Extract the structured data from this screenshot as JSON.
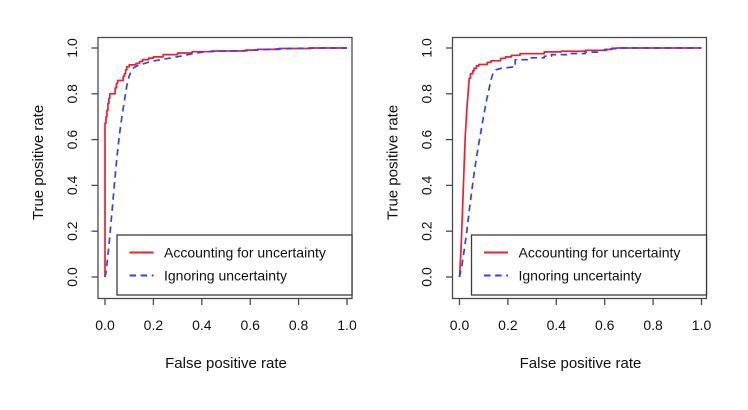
{
  "figure": {
    "background": "#ffffff",
    "axis_color": "#4a4a4a",
    "text_color": "#111111"
  },
  "chart_data": [
    {
      "type": "line",
      "subtype": "roc-step-curves",
      "title": "",
      "xlabel": "False positive rate",
      "ylabel": "True positive rate",
      "xlim": [
        0,
        1
      ],
      "ylim": [
        0,
        1
      ],
      "x_ticks": [
        "0.0",
        "0.2",
        "0.4",
        "0.6",
        "0.8",
        "1.0"
      ],
      "y_ticks": [
        "0.0",
        "0.2",
        "0.4",
        "0.6",
        "0.8",
        "1.0"
      ],
      "grid": "off",
      "legend_position": "bottomright",
      "series": [
        {
          "name": "Accounting for uncertainty",
          "color": "#f11e32",
          "dash": "solid",
          "points": [
            [
              0,
              0
            ],
            [
              0,
              0.672
            ],
            [
              0.004,
              0.672
            ],
            [
              0.004,
              0.7
            ],
            [
              0.008,
              0.7
            ],
            [
              0.008,
              0.727
            ],
            [
              0.012,
              0.727
            ],
            [
              0.012,
              0.758
            ],
            [
              0.016,
              0.758
            ],
            [
              0.016,
              0.78
            ],
            [
              0.02,
              0.78
            ],
            [
              0.02,
              0.8
            ],
            [
              0.042,
              0.8
            ],
            [
              0.042,
              0.826
            ],
            [
              0.047,
              0.826
            ],
            [
              0.047,
              0.846
            ],
            [
              0.052,
              0.846
            ],
            [
              0.052,
              0.858
            ],
            [
              0.075,
              0.858
            ],
            [
              0.075,
              0.876
            ],
            [
              0.08,
              0.876
            ],
            [
              0.08,
              0.888
            ],
            [
              0.085,
              0.888
            ],
            [
              0.085,
              0.905
            ],
            [
              0.09,
              0.905
            ],
            [
              0.09,
              0.918
            ],
            [
              0.1,
              0.918
            ],
            [
              0.1,
              0.926
            ],
            [
              0.128,
              0.926
            ],
            [
              0.128,
              0.933
            ],
            [
              0.143,
              0.933
            ],
            [
              0.143,
              0.941
            ],
            [
              0.155,
              0.941
            ],
            [
              0.155,
              0.949
            ],
            [
              0.18,
              0.949
            ],
            [
              0.18,
              0.956
            ],
            [
              0.2,
              0.956
            ],
            [
              0.2,
              0.961
            ],
            [
              0.24,
              0.961
            ],
            [
              0.24,
              0.971
            ],
            [
              0.3,
              0.971
            ],
            [
              0.3,
              0.978
            ],
            [
              0.36,
              0.978
            ],
            [
              0.36,
              0.984
            ],
            [
              0.44,
              0.984
            ],
            [
              0.44,
              0.987
            ],
            [
              0.58,
              0.987
            ],
            [
              0.58,
              0.991
            ],
            [
              0.63,
              0.991
            ],
            [
              0.63,
              0.994
            ],
            [
              0.72,
              0.994
            ],
            [
              0.72,
              0.998
            ],
            [
              0.85,
              0.998
            ],
            [
              0.85,
              1
            ],
            [
              1,
              1
            ]
          ]
        },
        {
          "name": "Ignoring uncertainty",
          "color": "#3542e6",
          "dash": "dashed",
          "points": [
            [
              0,
              0
            ],
            [
              0.004,
              0.02
            ],
            [
              0.01,
              0.075
            ],
            [
              0.015,
              0.125
            ],
            [
              0.02,
              0.18
            ],
            [
              0.03,
              0.3
            ],
            [
              0.04,
              0.42
            ],
            [
              0.05,
              0.53
            ],
            [
              0.06,
              0.625
            ],
            [
              0.07,
              0.7
            ],
            [
              0.08,
              0.77
            ],
            [
              0.09,
              0.835
            ],
            [
              0.1,
              0.878
            ],
            [
              0.11,
              0.902
            ],
            [
              0.12,
              0.915
            ],
            [
              0.135,
              0.923
            ],
            [
              0.155,
              0.93
            ],
            [
              0.18,
              0.938
            ],
            [
              0.21,
              0.945
            ],
            [
              0.25,
              0.953
            ],
            [
              0.29,
              0.96
            ],
            [
              0.33,
              0.968
            ],
            [
              0.37,
              0.977
            ],
            [
              0.41,
              0.983
            ],
            [
              0.47,
              0.986
            ],
            [
              0.58,
              0.988
            ],
            [
              0.63,
              0.992
            ],
            [
              0.72,
              0.996
            ],
            [
              0.82,
              0.999
            ],
            [
              0.87,
              1
            ],
            [
              1,
              1
            ]
          ]
        }
      ]
    },
    {
      "type": "line",
      "subtype": "roc-step-curves",
      "title": "",
      "xlabel": "False positive rate",
      "ylabel": "True positive rate",
      "xlim": [
        0,
        1
      ],
      "ylim": [
        0,
        1
      ],
      "x_ticks": [
        "0.0",
        "0.2",
        "0.4",
        "0.6",
        "0.8",
        "1.0"
      ],
      "y_ticks": [
        "0.0",
        "0.2",
        "0.4",
        "0.6",
        "0.8",
        "1.0"
      ],
      "grid": "off",
      "legend_position": "bottomright",
      "series": [
        {
          "name": "Accounting for uncertainty",
          "color": "#f11e32",
          "dash": "solid",
          "points": [
            [
              0,
              0
            ],
            [
              0.006,
              0.12
            ],
            [
              0.012,
              0.28
            ],
            [
              0.018,
              0.46
            ],
            [
              0.024,
              0.62
            ],
            [
              0.03,
              0.73
            ],
            [
              0.036,
              0.81
            ],
            [
              0.04,
              0.868
            ],
            [
              0.045,
              0.868
            ],
            [
              0.045,
              0.888
            ],
            [
              0.055,
              0.888
            ],
            [
              0.055,
              0.9
            ],
            [
              0.06,
              0.9
            ],
            [
              0.06,
              0.912
            ],
            [
              0.07,
              0.912
            ],
            [
              0.07,
              0.922
            ],
            [
              0.08,
              0.922
            ],
            [
              0.08,
              0.928
            ],
            [
              0.115,
              0.928
            ],
            [
              0.115,
              0.937
            ],
            [
              0.13,
              0.937
            ],
            [
              0.13,
              0.944
            ],
            [
              0.17,
              0.944
            ],
            [
              0.17,
              0.955
            ],
            [
              0.19,
              0.955
            ],
            [
              0.19,
              0.961
            ],
            [
              0.215,
              0.961
            ],
            [
              0.215,
              0.968
            ],
            [
              0.25,
              0.968
            ],
            [
              0.25,
              0.975
            ],
            [
              0.35,
              0.975
            ],
            [
              0.35,
              0.983
            ],
            [
              0.42,
              0.983
            ],
            [
              0.42,
              0.986
            ],
            [
              0.52,
              0.986
            ],
            [
              0.52,
              0.99
            ],
            [
              0.6,
              0.99
            ],
            [
              0.6,
              0.994
            ],
            [
              0.63,
              0.994
            ],
            [
              0.63,
              0.999
            ],
            [
              0.65,
              0.999
            ],
            [
              0.65,
              1
            ],
            [
              1,
              1
            ]
          ]
        },
        {
          "name": "Ignoring uncertainty",
          "color": "#3542e6",
          "dash": "dashed",
          "points": [
            [
              0,
              0
            ],
            [
              0.01,
              0.05
            ],
            [
              0.02,
              0.12
            ],
            [
              0.03,
              0.2
            ],
            [
              0.04,
              0.29
            ],
            [
              0.05,
              0.37
            ],
            [
              0.06,
              0.45
            ],
            [
              0.07,
              0.52
            ],
            [
              0.08,
              0.585
            ],
            [
              0.09,
              0.645
            ],
            [
              0.1,
              0.705
            ],
            [
              0.11,
              0.762
            ],
            [
              0.12,
              0.812
            ],
            [
              0.127,
              0.845
            ],
            [
              0.133,
              0.872
            ],
            [
              0.14,
              0.893
            ],
            [
              0.15,
              0.905
            ],
            [
              0.17,
              0.911
            ],
            [
              0.22,
              0.917
            ],
            [
              0.22,
              0.93
            ],
            [
              0.23,
              0.93
            ],
            [
              0.23,
              0.949
            ],
            [
              0.28,
              0.949
            ],
            [
              0.28,
              0.957
            ],
            [
              0.35,
              0.957
            ],
            [
              0.35,
              0.964
            ],
            [
              0.38,
              0.964
            ],
            [
              0.38,
              0.971
            ],
            [
              0.45,
              0.971
            ],
            [
              0.45,
              0.976
            ],
            [
              0.52,
              0.976
            ],
            [
              0.52,
              0.982
            ],
            [
              0.57,
              0.982
            ],
            [
              0.57,
              0.99
            ],
            [
              0.62,
              0.99
            ],
            [
              0.62,
              0.997
            ],
            [
              0.66,
              0.997
            ],
            [
              0.66,
              1
            ],
            [
              1,
              1
            ]
          ]
        }
      ]
    }
  ]
}
